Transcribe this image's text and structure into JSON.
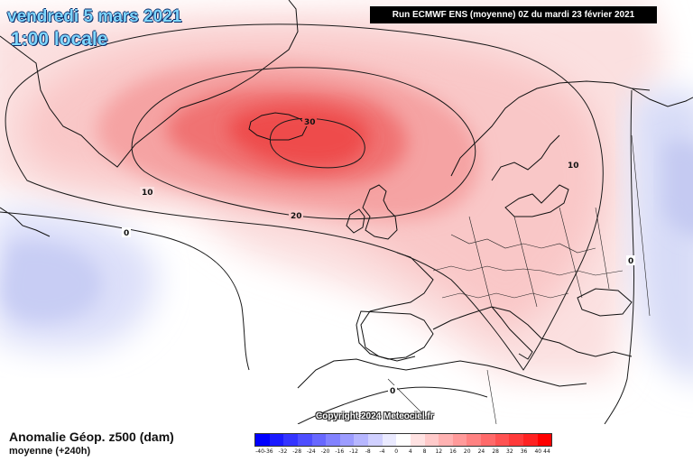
{
  "header": {
    "date": "vendredi 5 mars 2021",
    "time": "1:00 locale",
    "run_info": "Run ECMWF ENS (moyenne) 0Z du mardi 23 février 2021"
  },
  "map": {
    "field": "geopotential height anomaly 500 hPa",
    "contour_labels": [
      {
        "value": "30",
        "place": "Iceland / Denmark Strait"
      },
      {
        "value": "20",
        "place": "south of Iceland"
      },
      {
        "value": "10",
        "place": "south of Greenland"
      },
      {
        "value": "10",
        "place": "western Russia"
      },
      {
        "value": "0",
        "place": "central North Atlantic"
      },
      {
        "value": "0",
        "place": "eastern Europe"
      },
      {
        "value": "0",
        "place": "North Africa"
      }
    ],
    "colors": {
      "strong_positive": "#f03c3c",
      "positive": "#f79a9a",
      "weak_positive": "#fcdede",
      "weak_negative": "#d8dcfa",
      "negative": "#b9c0f2",
      "coastline": "#111111"
    }
  },
  "copyright": "Copyright 2024 Meteociel.fr",
  "footer": {
    "title": "Anomalie Géop. z500 (dam)",
    "subtitle": "moyenne    (+240h)"
  },
  "legend": {
    "labels": [
      "-40",
      "-36",
      "-32",
      "-28",
      "-24",
      "-20",
      "-16",
      "-12",
      "-8",
      "-4",
      "0",
      "4",
      "8",
      "12",
      "16",
      "20",
      "24",
      "28",
      "32",
      "36",
      "40",
      "44"
    ],
    "colors": [
      "#0000ff",
      "#1a1aff",
      "#3434ff",
      "#4e4eff",
      "#6868ff",
      "#8282ff",
      "#9c9cff",
      "#b6b6ff",
      "#d0d0ff",
      "#eaeaff",
      "#ffffff",
      "#ffe2e2",
      "#ffcaca",
      "#ffb2b2",
      "#ff9a9a",
      "#ff8282",
      "#ff6a6a",
      "#ff5252",
      "#ff3a3a",
      "#ff2222",
      "#ff0000"
    ]
  }
}
